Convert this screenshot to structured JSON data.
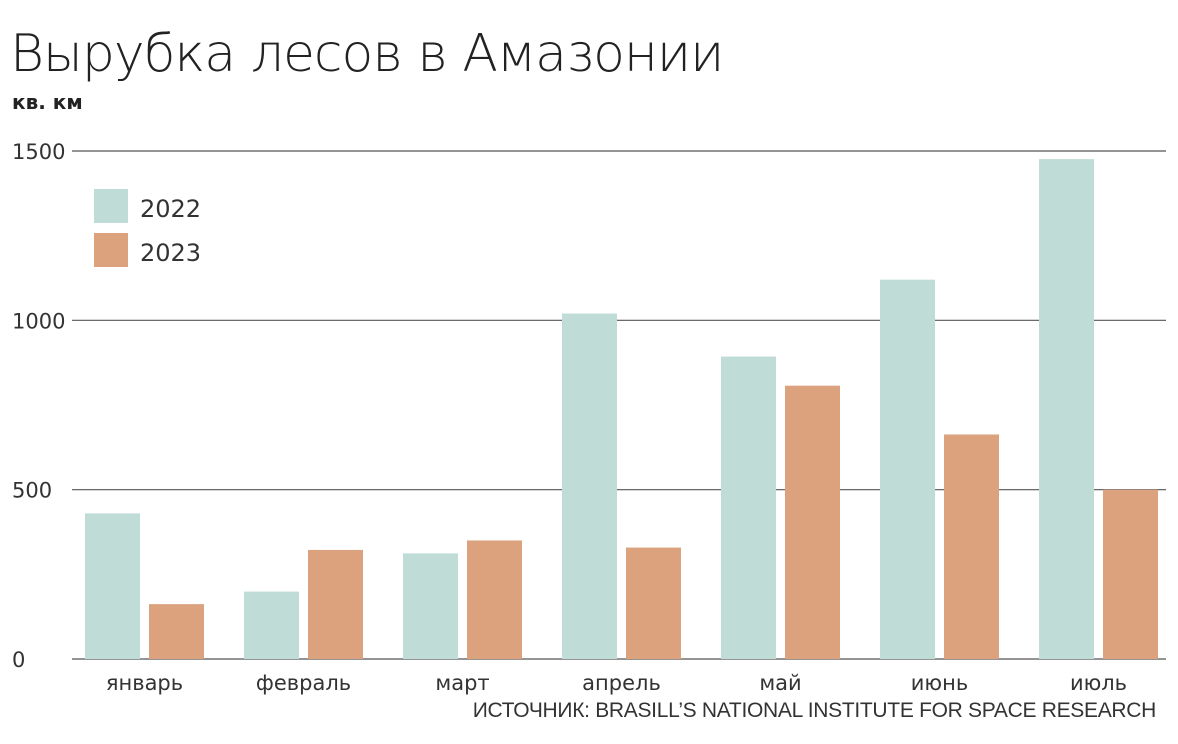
{
  "title": "Вырубка лесов в Амазонии",
  "unit_label": "кв. км",
  "source": "ИСТОЧНИК: BRASILL’S NATIONAL INSTITUTE FOR SPACE RESEARCH",
  "colors": {
    "series_2022": "#bfdcd7",
    "series_2023": "#dca27e",
    "gridline": "#555555",
    "text": "#333333"
  },
  "chart_data": {
    "type": "bar",
    "title": "Вырубка лесов в Амазонии",
    "ylabel": "кв. км",
    "xlabel": "",
    "categories": [
      "январь",
      "февраль",
      "март",
      "апрель",
      "май",
      "июнь",
      "июль"
    ],
    "series": [
      {
        "name": "2022",
        "color": "#bfdcd7",
        "values": [
          430,
          199,
          312,
          1020,
          893,
          1120,
          1476
        ]
      },
      {
        "name": "2023",
        "color": "#dca27e",
        "values": [
          162,
          322,
          350,
          329,
          807,
          663,
          500
        ]
      }
    ],
    "ylim": [
      0,
      1500
    ],
    "yticks": [
      0,
      500,
      1000,
      1500
    ],
    "grid": true,
    "legend": "top-left"
  }
}
